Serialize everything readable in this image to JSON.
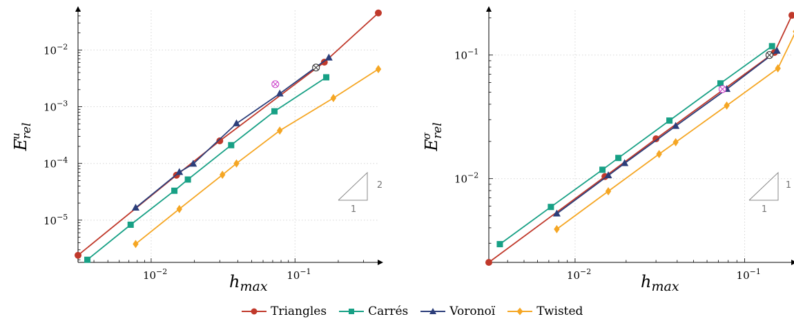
{
  "colors": {
    "triangles": "#c0392b",
    "carres": "#17a085",
    "voronoi": "#2c3e7a",
    "twisted": "#f5a623",
    "reference": "#333333",
    "outlier": "#cc44cc",
    "grid": "#d5d5d5"
  },
  "legend": {
    "items": [
      {
        "label": "Triangles",
        "color": "#c0392b",
        "marker": "circle"
      },
      {
        "label": "Carrés",
        "color": "#17a085",
        "marker": "square"
      },
      {
        "label": "Voronoï",
        "color": "#2c3e7a",
        "marker": "triangle"
      },
      {
        "label": "Twisted",
        "color": "#f5a623",
        "marker": "diamond"
      }
    ]
  },
  "chart_data": [
    {
      "type": "line",
      "xscale": "log",
      "yscale": "log",
      "xlabel": "h_max",
      "ylabel": "E^u_rel",
      "xlim": [
        0.0031,
        0.38
      ],
      "ylim": [
        1.8e-06,
        0.05
      ],
      "grid": true,
      "x_ticks": [
        {
          "value": 0.01,
          "base": "10",
          "exp": "−2"
        },
        {
          "value": 0.1,
          "base": "10",
          "exp": "−1"
        }
      ],
      "y_ticks": [
        {
          "value": 1e-05,
          "base": "10",
          "exp": "−5"
        },
        {
          "value": 0.0001,
          "base": "10",
          "exp": "−4"
        },
        {
          "value": 0.001,
          "base": "10",
          "exp": "−3"
        },
        {
          "value": 0.01,
          "base": "10",
          "exp": "−2"
        }
      ],
      "slope_triangle": {
        "rise": "2",
        "run": "1"
      },
      "series": [
        {
          "name": "Triangles",
          "marker": "circle",
          "color": "#c0392b",
          "x": [
            0.0031,
            0.015,
            0.03,
            0.16,
            0.38
          ],
          "y": [
            2.4e-06,
            6.2e-05,
            0.00025,
            0.0061,
            0.045
          ]
        },
        {
          "name": "Carrés",
          "marker": "square",
          "color": "#17a085",
          "x": [
            0.0036,
            0.0072,
            0.0145,
            0.018,
            0.036,
            0.072,
            0.165
          ],
          "y": [
            2e-06,
            8.3e-06,
            3.3e-05,
            5.2e-05,
            0.00021,
            0.00083,
            0.0033
          ]
        },
        {
          "name": "Voronoï",
          "marker": "triangle",
          "color": "#2c3e7a",
          "x": [
            0.0078,
            0.0157,
            0.0196,
            0.0392,
            0.0784,
            0.172
          ],
          "y": [
            1.65e-05,
            7e-05,
            9.8e-05,
            0.000505,
            0.0017,
            0.0073
          ]
        },
        {
          "name": "Twisted",
          "marker": "diamond",
          "color": "#f5a623",
          "x": [
            0.0078,
            0.0157,
            0.0313,
            0.0392,
            0.0784,
            0.185,
            0.38
          ],
          "y": [
            3.8e-06,
            1.57e-05,
            6.3e-05,
            0.0001,
            0.00038,
            0.00142,
            0.0046
          ]
        }
      ],
      "extra_markers": [
        {
          "style": "otimes",
          "color": "#333333",
          "x": 0.14,
          "y": 0.0049
        },
        {
          "style": "otimes",
          "color": "#cc44cc",
          "x": 0.073,
          "y": 0.0025
        }
      ]
    },
    {
      "type": "line",
      "xscale": "log",
      "yscale": "log",
      "xlabel": "h_max",
      "ylabel": "E^σ_rel",
      "xlim": [
        0.0031,
        0.19
      ],
      "ylim": [
        0.0021,
        0.23
      ],
      "grid": true,
      "x_ticks": [
        {
          "value": 0.01,
          "base": "10",
          "exp": "−2"
        },
        {
          "value": 0.1,
          "base": "10",
          "exp": "−1"
        }
      ],
      "y_ticks": [
        {
          "value": 0.01,
          "base": "10",
          "exp": "−2"
        },
        {
          "value": 0.1,
          "base": "10",
          "exp": "−1"
        }
      ],
      "slope_triangle": {
        "rise": "1",
        "run": "1"
      },
      "series": [
        {
          "name": "Triangles",
          "marker": "circle",
          "color": "#c0392b",
          "x": [
            0.0031,
            0.015,
            0.03,
            0.15,
            0.19
          ],
          "y": [
            0.0021,
            0.0104,
            0.021,
            0.105,
            0.21
          ]
        },
        {
          "name": "Carrés",
          "marker": "square",
          "color": "#17a085",
          "x": [
            0.0036,
            0.0072,
            0.0145,
            0.018,
            0.036,
            0.072,
            0.145
          ],
          "y": [
            0.00295,
            0.0059,
            0.0118,
            0.0147,
            0.0295,
            0.059,
            0.118
          ]
        },
        {
          "name": "Voronoï",
          "marker": "triangle",
          "color": "#2c3e7a",
          "x": [
            0.0078,
            0.0157,
            0.0196,
            0.0392,
            0.0784,
            0.155
          ],
          "y": [
            0.0052,
            0.0106,
            0.0133,
            0.0266,
            0.053,
            0.108
          ]
        },
        {
          "name": "Twisted",
          "marker": "diamond",
          "color": "#f5a623",
          "x": [
            0.0078,
            0.0157,
            0.0313,
            0.0392,
            0.0784,
            0.157,
            0.2
          ],
          "y": [
            0.0039,
            0.0079,
            0.0158,
            0.0197,
            0.039,
            0.078,
            0.155
          ]
        }
      ],
      "extra_markers": [
        {
          "style": "otimes",
          "color": "#333333",
          "x": 0.14,
          "y": 0.1
        },
        {
          "style": "otimes",
          "color": "#cc44cc",
          "x": 0.074,
          "y": 0.053
        }
      ]
    }
  ]
}
